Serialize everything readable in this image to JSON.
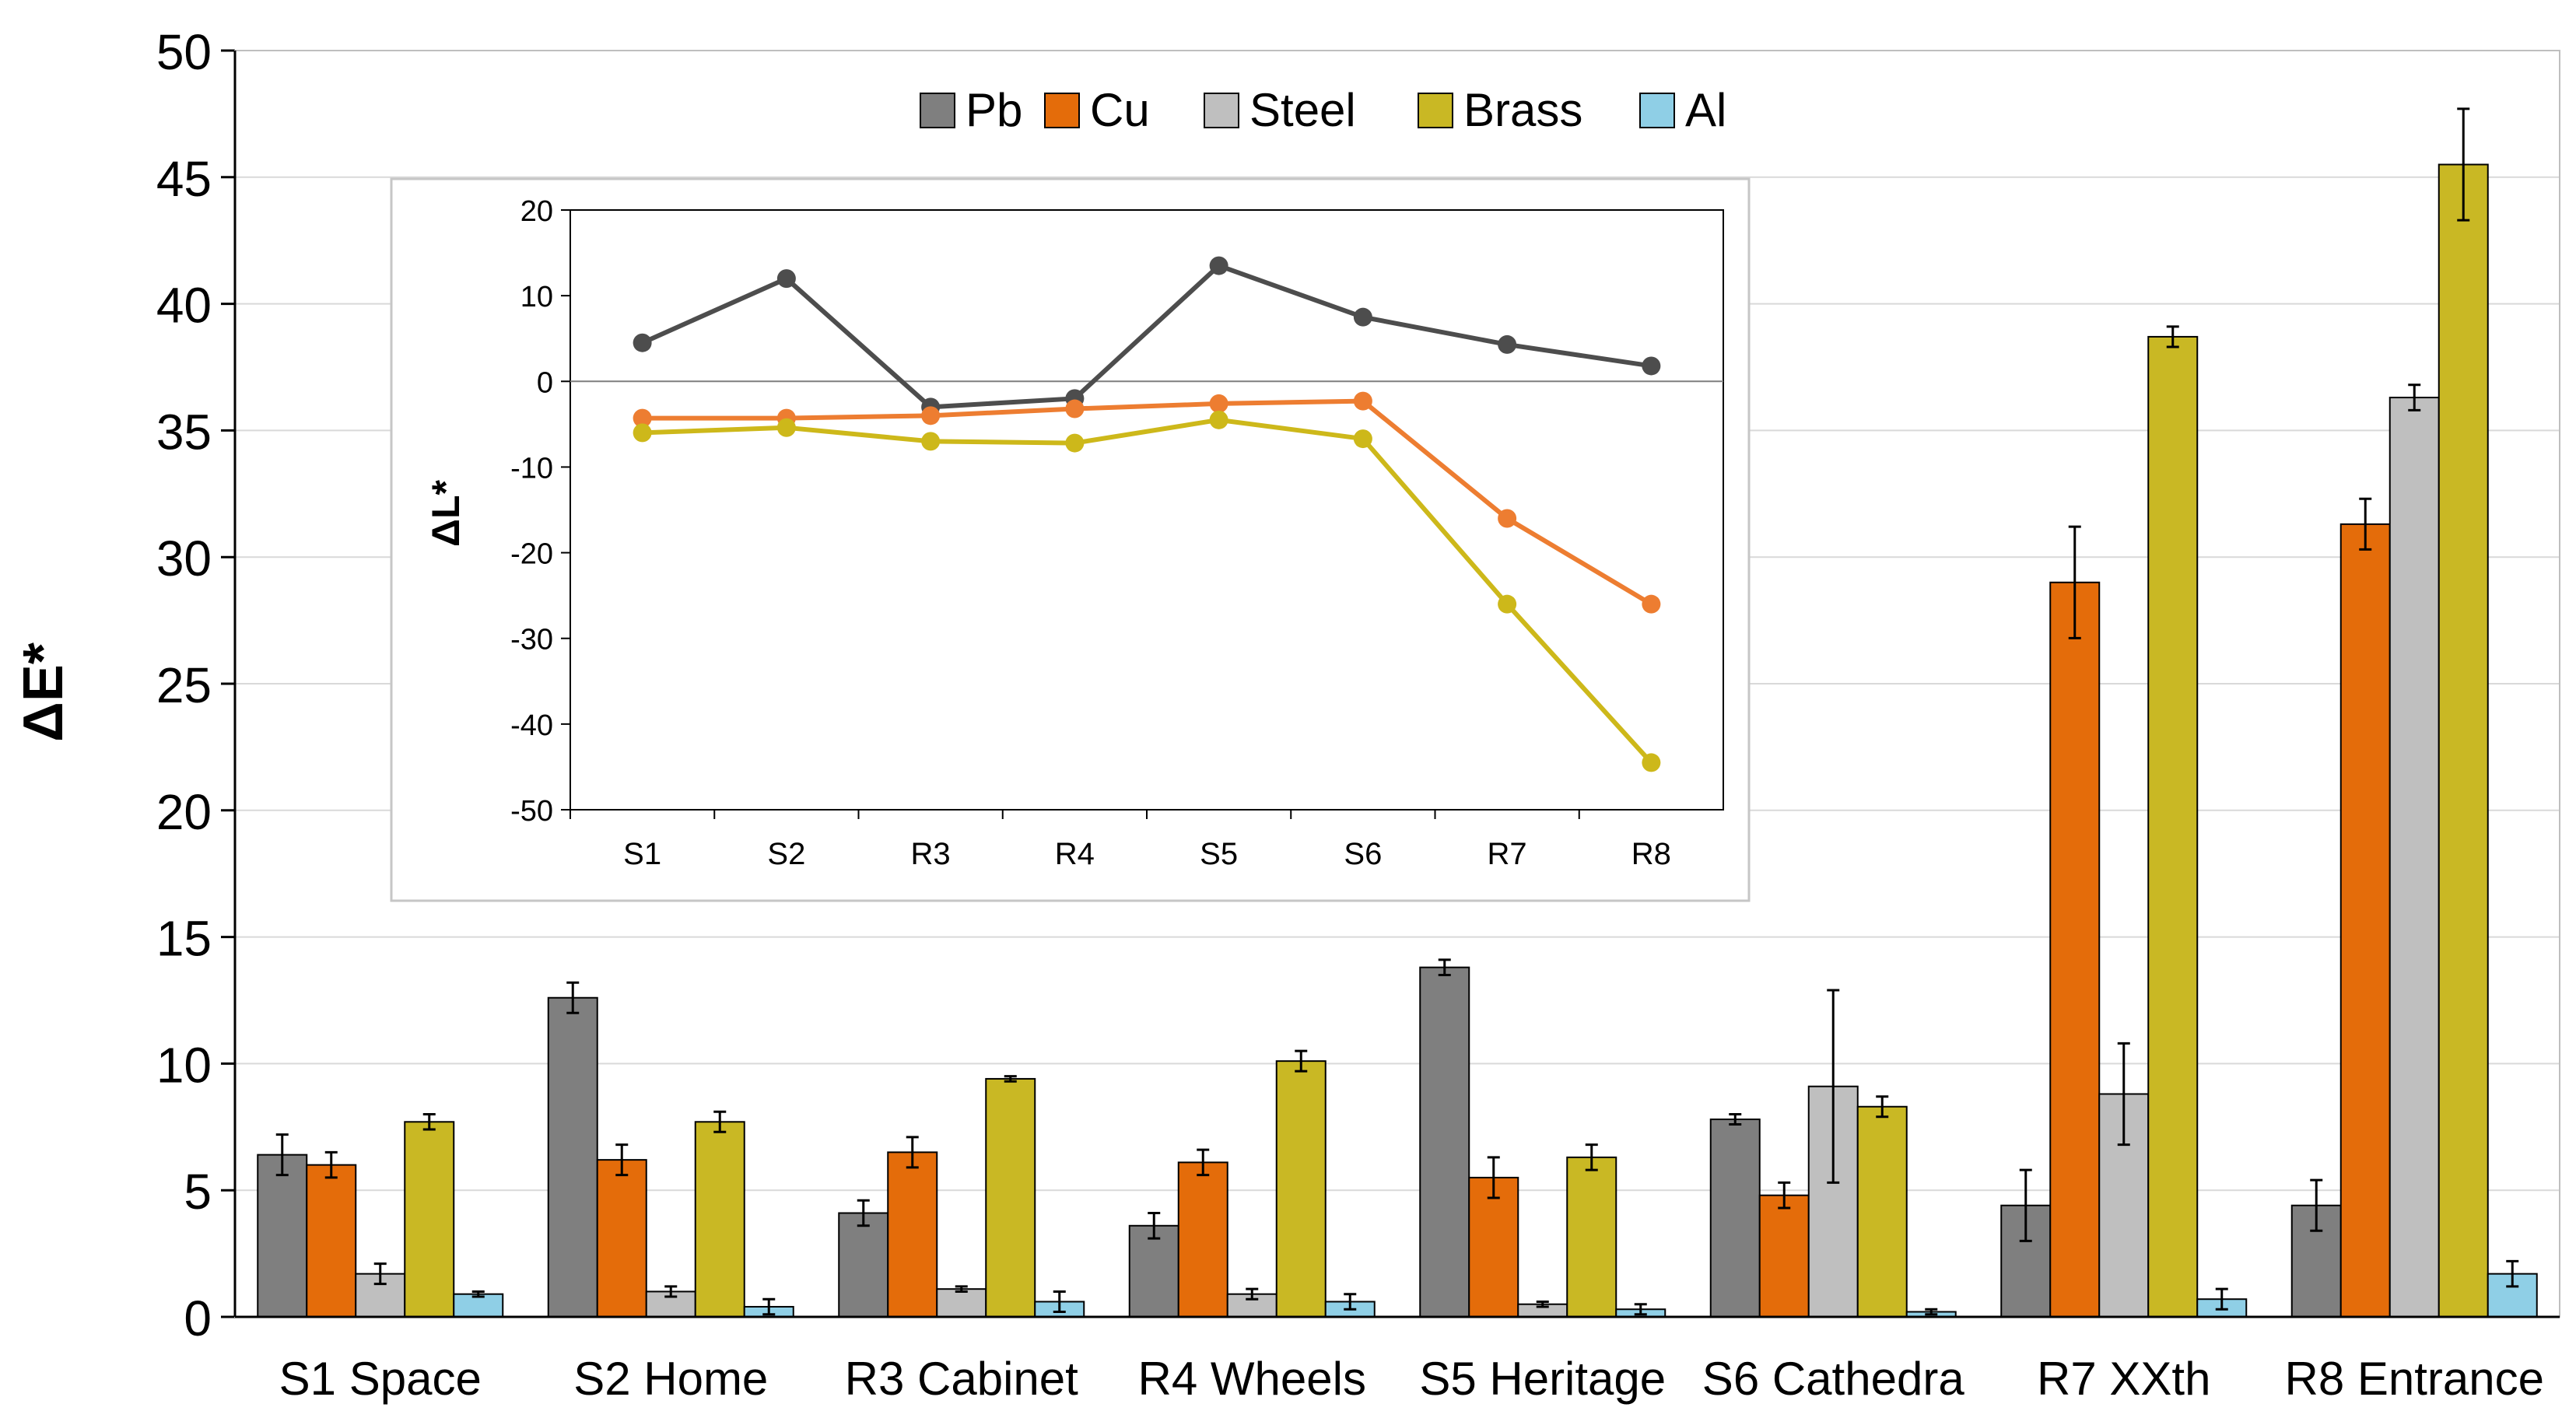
{
  "colors": {
    "Pb": "#7f7f7f",
    "Cu": "#e46c0a",
    "Steel": "#bfbfbf",
    "Brass": "#c9b824",
    "Al": "#8fcfe6",
    "line_pb": "#4d4d4d",
    "line_cu": "#ed7d31",
    "line_brass": "#cdb81a"
  },
  "chart_data": [
    {
      "type": "bar",
      "ylabel": "ΔE*",
      "xlabel": "",
      "ylim": [
        0,
        50
      ],
      "yticks": [
        0,
        5,
        10,
        15,
        20,
        25,
        30,
        35,
        40,
        45,
        50
      ],
      "legend_position": "top-center",
      "categories": [
        "S1 Space",
        "S2 Home",
        "R3 Cabinet",
        "R4 Wheels",
        "S5 Heritage",
        "S6 Cathedra",
        "R7 XXth",
        "R8 Entrance"
      ],
      "series": [
        {
          "name": "Pb",
          "values": [
            6.4,
            12.6,
            4.1,
            3.6,
            13.8,
            7.8,
            4.4,
            4.4
          ],
          "errors": [
            0.8,
            0.6,
            0.5,
            0.5,
            0.3,
            0.2,
            1.4,
            1.0
          ]
        },
        {
          "name": "Cu",
          "values": [
            6.0,
            6.2,
            6.5,
            6.1,
            5.5,
            4.8,
            29.0,
            31.3
          ],
          "errors": [
            0.5,
            0.6,
            0.6,
            0.5,
            0.8,
            0.5,
            2.2,
            1.0
          ]
        },
        {
          "name": "Steel",
          "values": [
            1.7,
            1.0,
            1.1,
            0.9,
            0.5,
            9.1,
            8.8,
            36.3
          ],
          "errors": [
            0.4,
            0.2,
            0.1,
            0.2,
            0.1,
            3.8,
            2.0,
            0.5
          ]
        },
        {
          "name": "Brass",
          "values": [
            7.7,
            7.7,
            9.4,
            10.1,
            6.3,
            8.3,
            38.7,
            45.5
          ],
          "errors": [
            0.3,
            0.4,
            0.1,
            0.4,
            0.5,
            0.4,
            0.4,
            2.2
          ]
        },
        {
          "name": "Al",
          "values": [
            0.9,
            0.4,
            0.6,
            0.6,
            0.3,
            0.2,
            0.7,
            1.7
          ],
          "errors": [
            0.1,
            0.3,
            0.4,
            0.3,
            0.2,
            0.1,
            0.4,
            0.5
          ]
        }
      ]
    },
    {
      "type": "line",
      "title": "",
      "ylabel": "ΔL*",
      "xlabel": "",
      "ylim": [
        -50,
        20
      ],
      "yticks": [
        -50,
        -40,
        -30,
        -20,
        -10,
        0,
        10,
        20
      ],
      "categories": [
        "S1",
        "S2",
        "R3",
        "R4",
        "S5",
        "S6",
        "R7",
        "R8"
      ],
      "series": [
        {
          "name": "Pb",
          "values": [
            4.5,
            12.0,
            -3.0,
            -2.0,
            13.5,
            7.5,
            4.3,
            1.8
          ]
        },
        {
          "name": "Cu",
          "values": [
            -4.3,
            -4.3,
            -4.0,
            -3.2,
            -2.6,
            -2.3,
            -16.0,
            -26.0
          ]
        },
        {
          "name": "Brass",
          "values": [
            -6.0,
            -5.4,
            -7.0,
            -7.2,
            -4.5,
            -6.7,
            -26.0,
            -44.5
          ]
        }
      ]
    }
  ]
}
